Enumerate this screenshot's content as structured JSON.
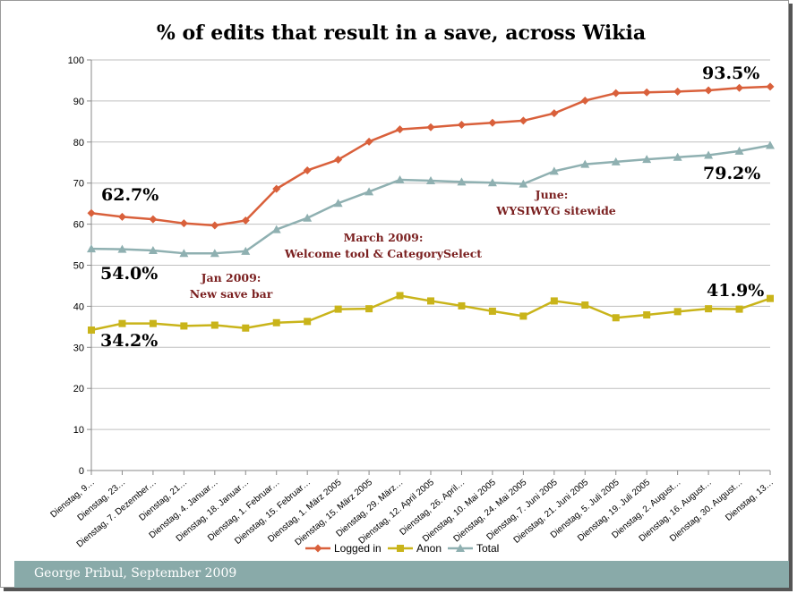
{
  "footer": {
    "text": "George Pribul, September 2009"
  },
  "chart_data": {
    "type": "line",
    "title": "% of edits that result in a save, across Wikia",
    "xlabel": "",
    "ylabel": "",
    "ylim": [
      0,
      100
    ],
    "yticks": [
      0,
      10,
      20,
      30,
      40,
      50,
      60,
      70,
      80,
      90,
      100
    ],
    "grid": true,
    "legend_position": "bottom",
    "categories": [
      "Dienstag, 9…",
      "Dienstag, 23…",
      "Dienstag, 7. Dezember…",
      "Dienstag, 21…",
      "Dienstag, 4. Januar…",
      "Dienstag, 18. Januar…",
      "Dienstag, 1. Februar…",
      "Dienstag, 15. Februar…",
      "Dienstag, 1. März 2005",
      "Dienstag, 15. März 2005",
      "Dienstag, 29. März…",
      "Dienstag, 12. April 2005",
      "Dienstag, 26. April…",
      "Dienstag, 10. Mai 2005",
      "Dienstag, 24. Mai 2005",
      "Dienstag, 7. Juni 2005",
      "Dienstag, 21. Juni 2005",
      "Dienstag, 5. Juli 2005",
      "Dienstag, 19. Juli 2005",
      "Dienstag, 2. August…",
      "Dienstag, 16. August…",
      "Dienstag, 30. August…",
      "Dienstag, 13…"
    ],
    "series": [
      {
        "name": "Logged in",
        "color": "#d9603b",
        "marker": "diamond",
        "values": [
          62.7,
          61.8,
          61.2,
          60.2,
          59.7,
          60.9,
          68.6,
          73.1,
          75.7,
          80.1,
          83.1,
          83.6,
          84.2,
          84.7,
          85.2,
          87.0,
          90.1,
          91.9,
          92.1,
          92.3,
          92.6,
          93.2,
          93.5
        ]
      },
      {
        "name": "Anon",
        "color": "#c9b41a",
        "marker": "square",
        "values": [
          34.2,
          35.8,
          35.8,
          35.2,
          35.4,
          34.7,
          36.0,
          36.3,
          39.3,
          39.4,
          42.6,
          41.3,
          40.1,
          38.8,
          37.6,
          41.3,
          40.3,
          37.2,
          37.9,
          38.7,
          39.4,
          39.3,
          41.9
        ]
      },
      {
        "name": "Total",
        "color": "#8fb0b1",
        "marker": "triangle",
        "values": [
          54.0,
          53.9,
          53.6,
          52.9,
          52.9,
          53.4,
          58.7,
          61.5,
          65.1,
          67.9,
          70.8,
          70.6,
          70.3,
          70.1,
          69.8,
          72.9,
          74.6,
          75.2,
          75.8,
          76.3,
          76.8,
          77.8,
          79.2
        ]
      }
    ],
    "data_labels": {
      "logged_start": "62.7%",
      "logged_end": "93.5%",
      "total_start": "54.0%",
      "total_end": "79.2%",
      "anon_start": "34.2%",
      "anon_end": "41.9%"
    },
    "annotations": {
      "jan_line1": "Jan 2009:",
      "jan_line2": "New save bar",
      "march_line1": "March 2009:",
      "march_line2": "Welcome tool & CategorySelect",
      "june_line1": "June:",
      "june_line2": "WYSIWYG sitewide"
    }
  }
}
